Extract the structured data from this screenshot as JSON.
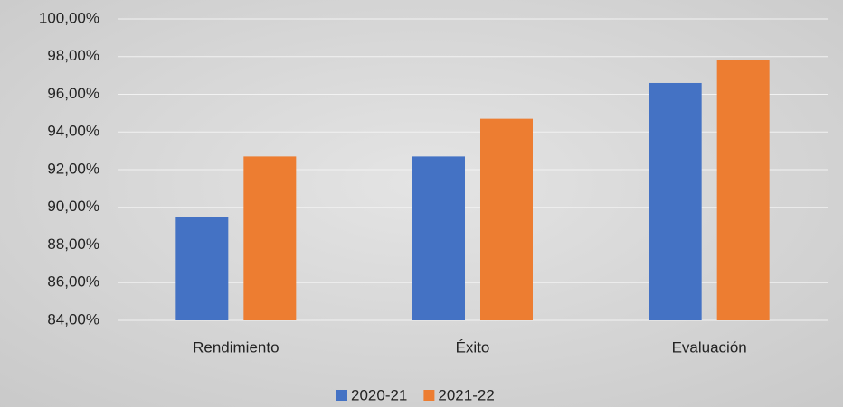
{
  "chart_data": {
    "type": "bar",
    "categories": [
      "Rendimiento",
      "Éxito",
      "Evaluación"
    ],
    "series": [
      {
        "name": "2020-21",
        "color": "#4472c4",
        "values": [
          89.5,
          92.7,
          96.6
        ]
      },
      {
        "name": "2021-22",
        "color": "#ed7d31",
        "values": [
          92.7,
          94.7,
          97.8
        ]
      }
    ],
    "ylim": [
      84,
      100
    ],
    "yticks": [
      {
        "value": 84,
        "label": "84,00%"
      },
      {
        "value": 86,
        "label": "86,00%"
      },
      {
        "value": 88,
        "label": "88,00%"
      },
      {
        "value": 90,
        "label": "90,00%"
      },
      {
        "value": 92,
        "label": "92,00%"
      },
      {
        "value": 94,
        "label": "94,00%"
      },
      {
        "value": 96,
        "label": "96,00%"
      },
      {
        "value": 98,
        "label": "98,00%"
      },
      {
        "value": 100,
        "label": "100,00%"
      }
    ],
    "grid": true,
    "legend": "bottom"
  }
}
